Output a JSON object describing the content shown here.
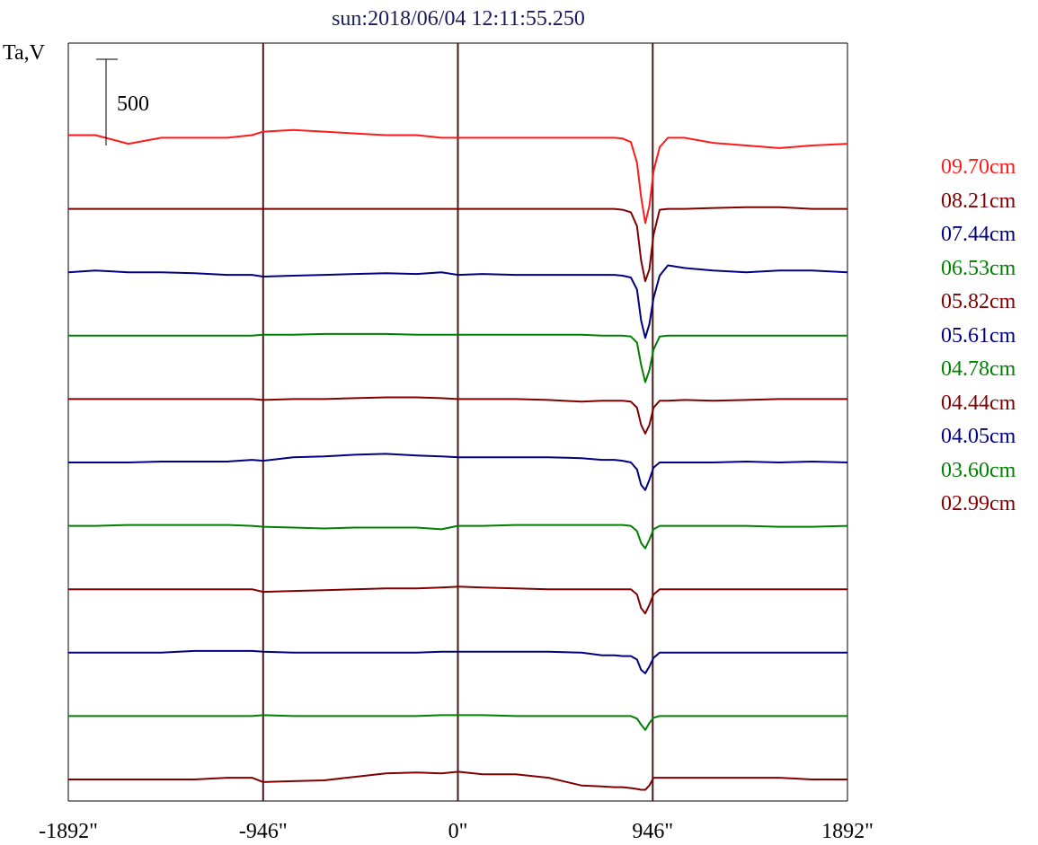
{
  "chart_data": {
    "type": "line",
    "title": "sun:2018/06/04 12:11:55.250",
    "ylabel": "Ta,V",
    "scale_bar_label": "500",
    "scale_bar_value": 500,
    "xlim": [
      -1892,
      1892
    ],
    "x_ticks": [
      {
        "value": -1892,
        "label": "-1892\""
      },
      {
        "value": -946,
        "label": "-946\""
      },
      {
        "value": 0,
        "label": "0\""
      },
      {
        "value": 946,
        "label": "946\""
      },
      {
        "value": 1892,
        "label": "1892\""
      }
    ],
    "vertical_markers": [
      -946,
      0,
      946
    ],
    "grid": false,
    "legend_position": "right",
    "x": [
      -1892,
      -1760,
      -1600,
      -1440,
      -1280,
      -1120,
      -1000,
      -946,
      -800,
      -650,
      -500,
      -350,
      -200,
      -80,
      0,
      120,
      280,
      440,
      600,
      700,
      760,
      800,
      840,
      870,
      890,
      910,
      930,
      950,
      980,
      1020,
      1100,
      1240,
      1400,
      1560,
      1720,
      1892
    ],
    "series": [
      {
        "name": "09.70cm",
        "color": "#ff1a1a",
        "values": [
          60,
          60,
          10,
          45,
          45,
          45,
          60,
          80,
          90,
          80,
          70,
          60,
          60,
          45,
          45,
          45,
          45,
          45,
          45,
          45,
          45,
          40,
          20,
          -100,
          -300,
          -450,
          -350,
          -150,
          -10,
          45,
          45,
          15,
          0,
          -15,
          0,
          10
        ]
      },
      {
        "name": "08.21cm",
        "color": "#800000",
        "values": [
          0,
          0,
          0,
          0,
          0,
          0,
          0,
          0,
          0,
          0,
          0,
          0,
          0,
          0,
          0,
          0,
          0,
          0,
          0,
          0,
          0,
          -5,
          -20,
          -100,
          -300,
          -420,
          -350,
          -150,
          -5,
          0,
          0,
          5,
          10,
          10,
          0,
          0
        ]
      },
      {
        "name": "07.44cm",
        "color": "#000080",
        "values": [
          0,
          10,
          0,
          0,
          -5,
          -15,
          -15,
          -25,
          -20,
          -15,
          -10,
          -5,
          -10,
          0,
          -15,
          -10,
          -15,
          -15,
          -15,
          -15,
          -15,
          -20,
          -30,
          -100,
          -280,
          -380,
          -300,
          -150,
          -20,
          40,
          25,
          10,
          0,
          10,
          10,
          0
        ]
      },
      {
        "name": "06.53cm",
        "color": "#008000",
        "values": [
          0,
          0,
          0,
          0,
          0,
          0,
          0,
          5,
          5,
          10,
          10,
          10,
          5,
          5,
          5,
          5,
          5,
          5,
          5,
          0,
          0,
          0,
          -5,
          -40,
          -170,
          -270,
          -200,
          -80,
          -5,
          0,
          0,
          0,
          0,
          0,
          0,
          0
        ]
      },
      {
        "name": "05.82cm",
        "color": "#800000",
        "values": [
          0,
          0,
          0,
          0,
          0,
          0,
          0,
          -5,
          0,
          0,
          5,
          10,
          10,
          5,
          0,
          0,
          0,
          -5,
          -15,
          -10,
          -10,
          -10,
          -15,
          -50,
          -150,
          -200,
          -150,
          -50,
          -10,
          -10,
          -5,
          -10,
          -5,
          0,
          0,
          0
        ]
      },
      {
        "name": "05.61cm",
        "color": "#000080",
        "values": [
          0,
          0,
          0,
          5,
          5,
          5,
          15,
          10,
          30,
          35,
          45,
          50,
          40,
          35,
          30,
          30,
          30,
          30,
          25,
          15,
          15,
          10,
          0,
          -40,
          -130,
          -160,
          -100,
          -30,
          0,
          0,
          0,
          0,
          5,
          0,
          5,
          0
        ]
      },
      {
        "name": "04.78cm",
        "color": "#008000",
        "values": [
          0,
          0,
          5,
          5,
          5,
          5,
          0,
          -5,
          -10,
          -15,
          -10,
          -10,
          -10,
          -20,
          0,
          0,
          5,
          5,
          5,
          5,
          5,
          5,
          0,
          -30,
          -100,
          -130,
          -80,
          -20,
          0,
          0,
          0,
          0,
          0,
          -5,
          -5,
          0
        ]
      },
      {
        "name": "04.44cm",
        "color": "#800000",
        "values": [
          0,
          0,
          0,
          0,
          0,
          0,
          0,
          -15,
          -10,
          -5,
          0,
          5,
          5,
          10,
          15,
          10,
          5,
          0,
          0,
          0,
          0,
          0,
          0,
          -30,
          -110,
          -140,
          -90,
          -30,
          0,
          0,
          0,
          0,
          0,
          0,
          0,
          0
        ]
      },
      {
        "name": "04.05cm",
        "color": "#000080",
        "values": [
          0,
          0,
          0,
          0,
          10,
          10,
          10,
          5,
          0,
          0,
          0,
          0,
          0,
          5,
          5,
          5,
          5,
          5,
          0,
          -15,
          -15,
          -20,
          -20,
          -40,
          -100,
          -120,
          -80,
          -30,
          0,
          0,
          0,
          0,
          0,
          0,
          0,
          0
        ]
      },
      {
        "name": "03.60cm",
        "color": "#008000",
        "values": [
          0,
          0,
          0,
          0,
          0,
          0,
          0,
          5,
          0,
          0,
          0,
          0,
          0,
          5,
          5,
          5,
          0,
          0,
          0,
          0,
          0,
          0,
          0,
          -15,
          -50,
          -80,
          -40,
          -10,
          0,
          0,
          0,
          0,
          0,
          0,
          0,
          0
        ]
      },
      {
        "name": "02.99cm",
        "color": "#800000",
        "values": [
          0,
          0,
          0,
          0,
          0,
          10,
          10,
          -15,
          -10,
          -5,
          15,
          35,
          40,
          35,
          45,
          30,
          30,
          10,
          -35,
          -40,
          -45,
          -45,
          -50,
          -55,
          -60,
          -60,
          -35,
          10,
          10,
          10,
          10,
          10,
          10,
          10,
          0,
          0
        ]
      }
    ]
  }
}
